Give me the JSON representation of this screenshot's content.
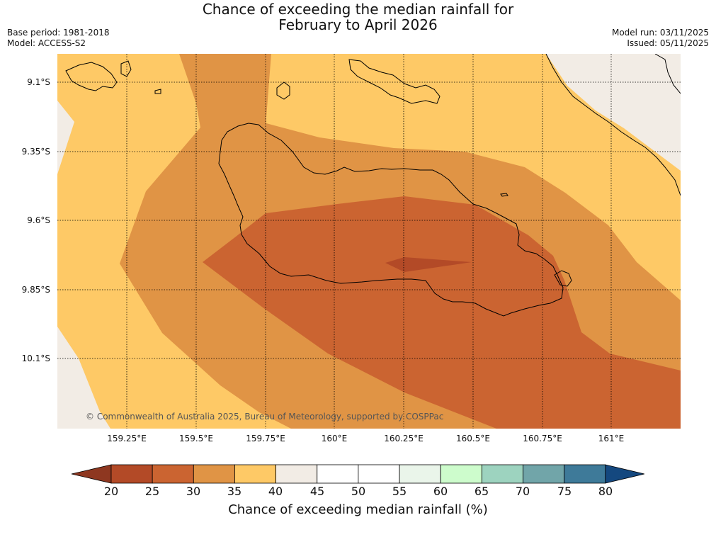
{
  "title": {
    "line1": "Chance of exceeding the median rainfall for",
    "line2": "February to April 2026"
  },
  "meta": {
    "base_period": "Base period: 1981-2018",
    "model": "Model: ACCESS-S2",
    "model_run": "Model run: 03/11/2025",
    "issued": "Issued: 05/11/2025"
  },
  "map": {
    "lat_labels": [
      "9.1°S",
      "9.35°S",
      "9.6°S",
      "9.85°S",
      "10.1°S"
    ],
    "lon_labels": [
      "159.25°E",
      "159.5°E",
      "159.75°E",
      "160°E",
      "160.25°E",
      "160.5°E",
      "160.75°E",
      "161°E"
    ],
    "copyright": "© Commonwealth of Australia 2025, Bureau of Meteorology, supported by COSPPac",
    "colors": {
      "c20_25": "#b34a27",
      "c25_30": "#cb6431",
      "c30_35": "#e09445",
      "c35_40": "#fec966",
      "c40_45": "#f2ece5",
      "land_outline": "#000000"
    }
  },
  "colorbar": {
    "ticks": [
      "20",
      "25",
      "30",
      "35",
      "40",
      "45",
      "50",
      "55",
      "60",
      "65",
      "70",
      "75",
      "80"
    ],
    "colors": [
      "#8e3720",
      "#b34a27",
      "#cb6431",
      "#e09445",
      "#fec966",
      "#f2ece5",
      "#ffffff",
      "#ffffff",
      "#eaf5ea",
      "#cdfccc",
      "#9dd3bf",
      "#71a5a9",
      "#3e7a99",
      "#14487f"
    ],
    "label": "Chance of exceeding median rainfall (%)"
  }
}
